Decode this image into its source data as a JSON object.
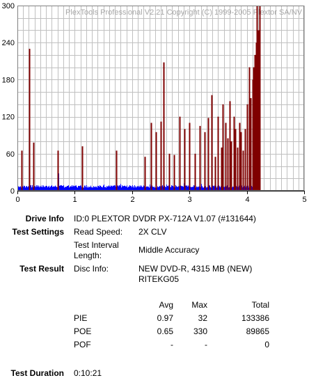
{
  "chart_data": {
    "type": "bar",
    "watermark": "PlexTools Professional V2.21 Copyright (C) 1999-2005 Plextor SA/NV",
    "xlim": [
      0,
      5
    ],
    "ylim": [
      0,
      300
    ],
    "x_ticks": [
      "0",
      "1",
      "2",
      "3",
      "4",
      "5"
    ],
    "y_ticks": [
      "0",
      "60",
      "120",
      "180",
      "240",
      "300"
    ],
    "grid": true,
    "data_end_x": 4.22,
    "colors": {
      "pie": "#0000ff",
      "poe": "#7f0000",
      "grid": "#c0c0c0"
    },
    "series": [
      {
        "name": "PIE",
        "baseline": 5,
        "spikes": [
          {
            "x": 0.35,
            "y": 9
          },
          {
            "x": 0.55,
            "y": 8
          },
          {
            "x": 0.7,
            "y": 12
          },
          {
            "x": 0.71,
            "y": 28
          },
          {
            "x": 0.72,
            "y": 18
          },
          {
            "x": 0.8,
            "y": 9
          },
          {
            "x": 1.0,
            "y": 8
          },
          {
            "x": 1.2,
            "y": 9
          },
          {
            "x": 1.5,
            "y": 10
          },
          {
            "x": 1.8,
            "y": 11
          },
          {
            "x": 2.0,
            "y": 9
          },
          {
            "x": 2.3,
            "y": 10
          },
          {
            "x": 2.6,
            "y": 10
          },
          {
            "x": 2.9,
            "y": 12
          },
          {
            "x": 3.2,
            "y": 11
          },
          {
            "x": 3.5,
            "y": 12
          },
          {
            "x": 3.8,
            "y": 13
          },
          {
            "x": 4.0,
            "y": 14
          },
          {
            "x": 4.15,
            "y": 16
          },
          {
            "x": 4.2,
            "y": 18
          }
        ]
      },
      {
        "name": "POE",
        "spikes": [
          {
            "x": 0.07,
            "y": 65
          },
          {
            "x": 0.21,
            "y": 230
          },
          {
            "x": 0.28,
            "y": 78
          },
          {
            "x": 0.7,
            "y": 65
          },
          {
            "x": 1.13,
            "y": 72
          },
          {
            "x": 1.72,
            "y": 65
          },
          {
            "x": 2.22,
            "y": 55
          },
          {
            "x": 2.33,
            "y": 110
          },
          {
            "x": 2.42,
            "y": 95
          },
          {
            "x": 2.5,
            "y": 112
          },
          {
            "x": 2.55,
            "y": 208
          },
          {
            "x": 2.65,
            "y": 60
          },
          {
            "x": 2.73,
            "y": 58
          },
          {
            "x": 2.83,
            "y": 120
          },
          {
            "x": 2.91,
            "y": 100
          },
          {
            "x": 3.0,
            "y": 110
          },
          {
            "x": 3.1,
            "y": 60
          },
          {
            "x": 3.18,
            "y": 105
          },
          {
            "x": 3.26,
            "y": 95
          },
          {
            "x": 3.33,
            "y": 118
          },
          {
            "x": 3.38,
            "y": 155
          },
          {
            "x": 3.45,
            "y": 55
          },
          {
            "x": 3.5,
            "y": 120
          },
          {
            "x": 3.55,
            "y": 70
          },
          {
            "x": 3.58,
            "y": 140
          },
          {
            "x": 3.63,
            "y": 110
          },
          {
            "x": 3.66,
            "y": 85
          },
          {
            "x": 3.7,
            "y": 145
          },
          {
            "x": 3.73,
            "y": 80
          },
          {
            "x": 3.77,
            "y": 120
          },
          {
            "x": 3.8,
            "y": 100
          },
          {
            "x": 3.83,
            "y": 70
          },
          {
            "x": 3.87,
            "y": 110
          },
          {
            "x": 3.9,
            "y": 95
          },
          {
            "x": 3.93,
            "y": 65
          },
          {
            "x": 3.97,
            "y": 100
          },
          {
            "x": 4.01,
            "y": 140
          },
          {
            "x": 4.04,
            "y": 200
          },
          {
            "x": 4.07,
            "y": 150
          },
          {
            "x": 4.1,
            "y": 180
          },
          {
            "x": 4.12,
            "y": 200
          },
          {
            "x": 4.14,
            "y": 220
          },
          {
            "x": 4.16,
            "y": 240
          },
          {
            "x": 4.18,
            "y": 300
          },
          {
            "x": 4.2,
            "y": 260
          },
          {
            "x": 4.22,
            "y": 300
          }
        ]
      }
    ]
  },
  "drive_info": {
    "label": "Drive Info",
    "value": "ID:0 PLEXTOR DVDR PX-712A V1.07 (#131644)"
  },
  "test_settings": {
    "label": "Test Settings",
    "read_speed_label": "Read Speed:",
    "read_speed_value": "2X CLV",
    "interval_label_1": "Test Interval",
    "interval_label_2": "Length:",
    "interval_value": "Middle Accuracy"
  },
  "test_result": {
    "label": "Test Result",
    "disc_info_label": "Disc Info:",
    "disc_info_line1": "NEW DVD-R, 4315 MB (NEW)",
    "disc_info_line2": "RITEKG05",
    "headers": {
      "avg": "Avg",
      "max": "Max",
      "total": "Total"
    },
    "rows": [
      {
        "name": "PIE",
        "avg": "0.97",
        "max": "32",
        "total": "133386"
      },
      {
        "name": "POE",
        "avg": "0.65",
        "max": "330",
        "total": "89865"
      },
      {
        "name": "POF",
        "avg": "-",
        "max": "-",
        "total": "0"
      }
    ]
  },
  "test_duration": {
    "label": "Test Duration",
    "value": "0:10:21"
  }
}
